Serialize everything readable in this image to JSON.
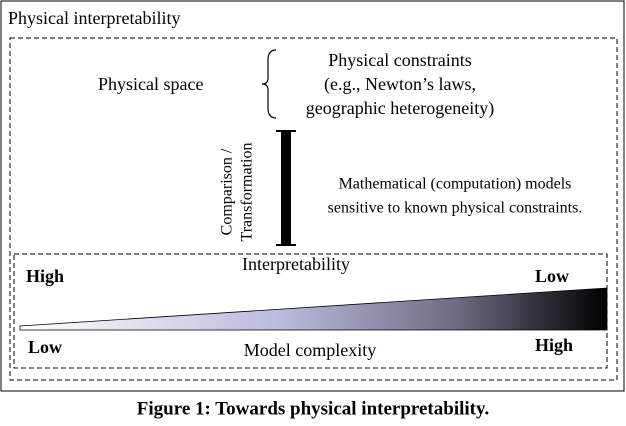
{
  "title": "Physical interpretability",
  "physical_space": "Physical space",
  "constraints": {
    "lines": [
      "Physical constraints",
      "(e.g., Newton’s laws,",
      "geographic heterogeneity)"
    ]
  },
  "transformation": {
    "lines": [
      "Comparison /",
      "Transformation"
    ]
  },
  "models": {
    "lines": [
      "Mathematical (computation) models",
      "sensitive to known physical constraints."
    ]
  },
  "interpretability_axis": {
    "label": "Interpretability",
    "start": "High",
    "end": "Low"
  },
  "complexity_axis": {
    "label": "Model complexity",
    "start": "Low",
    "end": "High"
  },
  "caption": "Figure 1: Towards physical interpretability."
}
